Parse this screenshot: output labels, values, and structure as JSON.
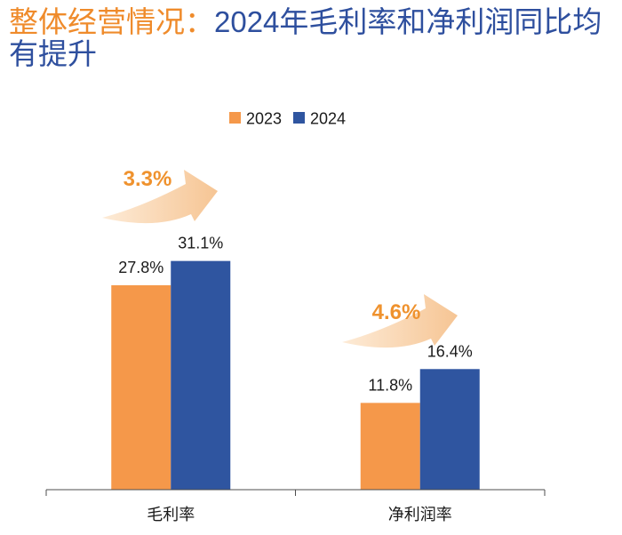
{
  "title": {
    "prefix": "整体经营情况：",
    "main": "2024年毛利率和净利润同比均有提升"
  },
  "colors": {
    "title_accent": "#EF8B2B",
    "title_main": "#2E4F9E",
    "annotation": "#EF922E"
  },
  "chart_data": {
    "type": "bar",
    "categories": [
      "毛利率",
      "净利润率"
    ],
    "series": [
      {
        "name": "2023",
        "color": "#F5984A",
        "values": [
          27.8,
          11.8
        ]
      },
      {
        "name": "2024",
        "color": "#2F55A0",
        "values": [
          31.1,
          16.4
        ]
      }
    ],
    "unit": "%",
    "ylim": [
      0,
      40
    ],
    "grid": false,
    "legend": "top-center",
    "growth_annotations": [
      {
        "category_index": 0,
        "label": "3.3%"
      },
      {
        "category_index": 1,
        "label": "4.6%"
      }
    ]
  }
}
